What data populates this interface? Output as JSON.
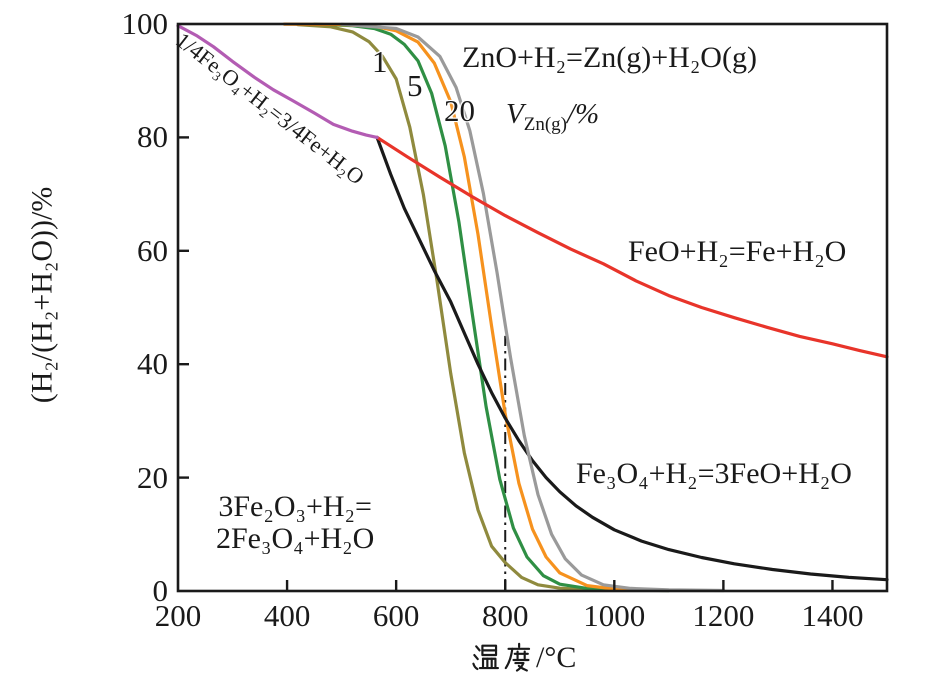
{
  "figure_title": "",
  "colors": {
    "axis": "#1a1a1a",
    "purple": "#b35cb3",
    "black": "#1a1a1a",
    "red": "#e8342a",
    "olive": "#8f8a3e",
    "green": "#2f8f44",
    "orange": "#f6921e",
    "gray": "#9a9a9a"
  },
  "annotations": {
    "zn_equation": "ZnO+H₂=Zn(g)+H₂O(g)",
    "vzn_v": "V",
    "vzn_sub": "Zn(g)",
    "vzn_rest": "/%",
    "zn_label_1": "1",
    "zn_label_5": "5",
    "zn_label_20": "20",
    "feo_equation": "FeO+H₂=Fe+H₂O",
    "fe3o4_equation": "Fe₃O₄+H₂=3FeO+H₂O",
    "fe2o3_equation_line1": "3Fe₂O₃+H₂=",
    "fe2o3_equation_line2": "2Fe₃O₄+H₂O",
    "purple_curve_label": "1/4Fe₃O₄+H₂=3/4Fe+H₂O"
  },
  "axes": {
    "y_label": "(H₂/(H₂+H₂O))/%",
    "x_label_full": "温度/℃",
    "x_label_suffix": "/°C"
  },
  "chart_data": {
    "type": "line",
    "xlabel": "温度/℃",
    "ylabel": "(H₂/(H₂+H₂O))/%",
    "xlim": [
      200,
      1500
    ],
    "ylim": [
      0,
      100
    ],
    "x_ticks": [
      200,
      400,
      600,
      800,
      1000,
      1200,
      1400
    ],
    "y_ticks": [
      0,
      20,
      40,
      60,
      80,
      100
    ],
    "grid": false,
    "legend": "none",
    "guide_line": {
      "style": "dash-dot-vertical",
      "x": 800,
      "y_from": 0,
      "y_to": 45
    },
    "series": [
      {
        "id": "zno-vzn-1",
        "name": "ZnO+H₂=Zn(g)+H₂O(g)",
        "vzn_label": "1",
        "color": "olive",
        "points": [
          [
            420,
            99.9
          ],
          [
            480,
            99.5
          ],
          [
            520,
            98.6
          ],
          [
            550,
            96.9
          ],
          [
            575,
            94.3
          ],
          [
            600,
            90.3
          ],
          [
            625,
            81.8
          ],
          [
            650,
            69.9
          ],
          [
            675,
            54.6
          ],
          [
            700,
            38.4
          ],
          [
            725,
            24.4
          ],
          [
            750,
            14.3
          ],
          [
            775,
            7.9
          ],
          [
            800,
            5.0
          ],
          [
            830,
            2.4
          ],
          [
            860,
            1.1
          ],
          [
            900,
            0.5
          ],
          [
            950,
            0.25
          ],
          [
            1000,
            0.15
          ],
          [
            1100,
            0.08
          ]
        ]
      },
      {
        "id": "zno-vzn-5",
        "name": "ZnO+H₂=Zn(g)+H₂O(g)",
        "vzn_label": "5",
        "color": "green",
        "points": [
          [
            450,
            99.96
          ],
          [
            520,
            99.7
          ],
          [
            560,
            99.2
          ],
          [
            590,
            98.2
          ],
          [
            615,
            96.4
          ],
          [
            640,
            93.5
          ],
          [
            665,
            87.8
          ],
          [
            690,
            78.5
          ],
          [
            715,
            65.1
          ],
          [
            740,
            48.6
          ],
          [
            765,
            32.5
          ],
          [
            790,
            19.7
          ],
          [
            815,
            11.1
          ],
          [
            840,
            6.0
          ],
          [
            870,
            2.7
          ],
          [
            900,
            1.2
          ],
          [
            950,
            0.45
          ],
          [
            1000,
            0.2
          ],
          [
            1100,
            0.08
          ]
        ]
      },
      {
        "id": "zno-vzn-mid",
        "name": "ZnO+H₂=Zn(g)+H₂O(g)",
        "vzn_label": "",
        "color": "orange",
        "points": [
          [
            395,
            99.99
          ],
          [
            500,
            99.9
          ],
          [
            560,
            99.6
          ],
          [
            600,
            98.8
          ],
          [
            640,
            96.8
          ],
          [
            670,
            93.1
          ],
          [
            700,
            86.3
          ],
          [
            725,
            76.6
          ],
          [
            750,
            62.9
          ],
          [
            775,
            46.7
          ],
          [
            800,
            31.2
          ],
          [
            825,
            19.0
          ],
          [
            850,
            10.9
          ],
          [
            875,
            6.0
          ],
          [
            900,
            3.2
          ],
          [
            950,
            0.95
          ],
          [
            1000,
            0.35
          ],
          [
            1100,
            0.1
          ]
        ]
      },
      {
        "id": "fe3o4-to-feo",
        "name": "Fe₃O₄+H₂=3FeO+H₂O",
        "vzn_label": "",
        "color": "black",
        "points": [
          [
            565,
            80
          ],
          [
            590,
            73.5
          ],
          [
            615,
            67.5
          ],
          [
            645,
            61.5
          ],
          [
            670,
            56.5
          ],
          [
            700,
            51
          ],
          [
            725,
            45.5
          ],
          [
            750,
            40
          ],
          [
            775,
            35
          ],
          [
            800,
            30.5
          ],
          [
            825,
            26.5
          ],
          [
            850,
            23
          ],
          [
            875,
            20
          ],
          [
            900,
            17.5
          ],
          [
            930,
            15
          ],
          [
            960,
            13
          ],
          [
            1000,
            10.8
          ],
          [
            1050,
            8.8
          ],
          [
            1100,
            7.3
          ],
          [
            1160,
            5.9
          ],
          [
            1220,
            4.8
          ],
          [
            1290,
            3.8
          ],
          [
            1360,
            3.0
          ],
          [
            1430,
            2.4
          ],
          [
            1500,
            2.0
          ]
        ]
      },
      {
        "id": "zno-vzn-20",
        "name": "ZnO+H₂=Zn(g)+H₂O(g)",
        "vzn_label": "20",
        "color": "gray",
        "points": [
          [
            500,
            99.95
          ],
          [
            600,
            99.2
          ],
          [
            640,
            97.7
          ],
          [
            680,
            94.3
          ],
          [
            710,
            88.8
          ],
          [
            735,
            81.2
          ],
          [
            760,
            70.1
          ],
          [
            785,
            56.1
          ],
          [
            800,
            47.0
          ],
          [
            810,
            41.0
          ],
          [
            835,
            27.4
          ],
          [
            860,
            17.0
          ],
          [
            885,
            10.0
          ],
          [
            910,
            5.7
          ],
          [
            940,
            2.8
          ],
          [
            980,
            1.1
          ],
          [
            1030,
            0.45
          ],
          [
            1100,
            0.2
          ],
          [
            1200,
            0.08
          ]
        ]
      },
      {
        "id": "feo-to-fe",
        "name": "FeO+H₂=Fe+H₂O",
        "vzn_label": "",
        "color": "red",
        "points": [
          [
            565,
            80
          ],
          [
            620,
            76.6
          ],
          [
            680,
            73
          ],
          [
            740,
            69.5
          ],
          [
            800,
            66.2
          ],
          [
            860,
            63.2
          ],
          [
            920,
            60.3
          ],
          [
            980,
            57.7
          ],
          [
            1040,
            54.7
          ],
          [
            1100,
            52.1
          ],
          [
            1160,
            50
          ],
          [
            1220,
            48.2
          ],
          [
            1280,
            46.5
          ],
          [
            1340,
            44.9
          ],
          [
            1400,
            43.6
          ],
          [
            1450,
            42.4
          ],
          [
            1500,
            41.3
          ]
        ]
      },
      {
        "id": "fe3o4-to-fe",
        "name": "1/4Fe₃O₄+H₂=3/4Fe+H₂O",
        "vzn_label": "",
        "color": "purple",
        "points": [
          [
            200,
            99.7
          ],
          [
            235,
            97.9
          ],
          [
            265,
            96
          ],
          [
            300,
            93.4
          ],
          [
            340,
            90.6
          ],
          [
            375,
            88.4
          ],
          [
            410,
            86.5
          ],
          [
            450,
            84.3
          ],
          [
            485,
            82.3
          ],
          [
            520,
            81.1
          ],
          [
            545,
            80.4
          ],
          [
            565,
            80
          ]
        ]
      }
    ]
  }
}
